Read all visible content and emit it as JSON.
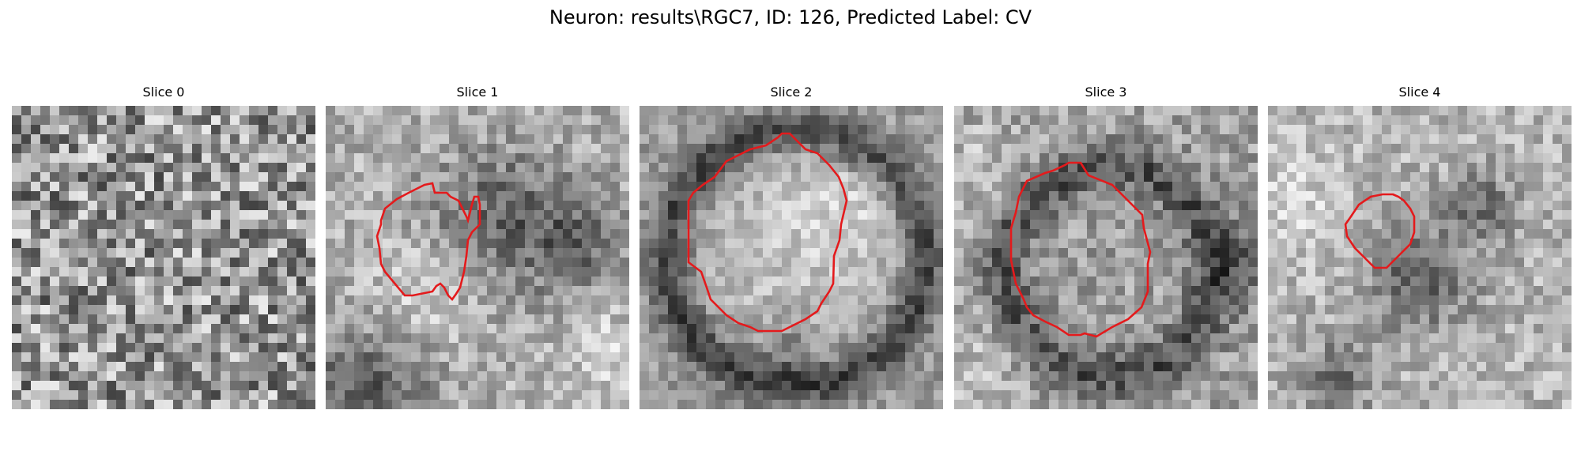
{
  "figure": {
    "title": "Neuron: results\\RGC7, ID: 126, Predicted Label: CV"
  },
  "panels": [
    {
      "title": "Slice 0",
      "has_outline": false
    },
    {
      "title": "Slice 1",
      "has_outline": true
    },
    {
      "title": "Slice 2",
      "has_outline": true
    },
    {
      "title": "Slice 3",
      "has_outline": true
    },
    {
      "title": "Slice 4",
      "has_outline": true
    }
  ],
  "colors": {
    "outline": "#e41a1c",
    "colormap": "gray"
  }
}
